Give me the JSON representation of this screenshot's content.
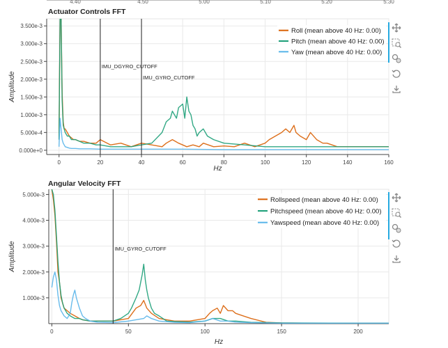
{
  "charts": [
    {
      "title": "Actuator Controls FFT",
      "xlabel": "Hz",
      "ylabel": "Amplitude",
      "top_axis_ticks": [
        "4.40",
        "4.50",
        "5.00",
        "5.10",
        "5.20",
        "5.30"
      ],
      "cutoffs": [
        {
          "label": "IMU_DGYRO_CUTOFF",
          "x": 20
        },
        {
          "label": "IMU_GYRO_CUTOFF",
          "x": 40
        }
      ],
      "legend": [
        {
          "label": "Roll (mean above 40 Hz: 0.00)",
          "color": "#d95f02"
        },
        {
          "label": "Pitch (mean above 40 Hz: 0.00)",
          "color": "#1b9e77"
        },
        {
          "label": "Yaw (mean above 40 Hz: 0.00)",
          "color": "#56b4e9"
        }
      ]
    },
    {
      "title": "Angular Velocity FFT",
      "xlabel": "Hz",
      "ylabel": "Amplitude",
      "cutoffs": [
        {
          "label": "IMU_GYRO_CUTOFF",
          "x": 40
        }
      ],
      "legend": [
        {
          "label": "Rollspeed (mean above 40 Hz: 0.00)",
          "color": "#d95f02"
        },
        {
          "label": "Pitchspeed (mean above 40 Hz: 0.00)",
          "color": "#1b9e77"
        },
        {
          "label": "Yawspeed (mean above 40 Hz: 0.00)",
          "color": "#56b4e9"
        }
      ]
    }
  ],
  "toolbar": [
    "pan-icon",
    "box-zoom-icon",
    "wheel-zoom-icon",
    "reset-icon",
    "save-icon"
  ],
  "chart_data": [
    {
      "type": "line",
      "title": "Actuator Controls FFT",
      "xlabel": "Hz",
      "ylabel": "Amplitude",
      "xlim": [
        -6,
        160
      ],
      "ylim": [
        -0.00012,
        0.0037
      ],
      "x_ticks": [
        "0",
        "20",
        "40",
        "60",
        "80",
        "100",
        "120",
        "140",
        "160"
      ],
      "y_ticks": [
        "0.000e+0",
        "5.000e-4",
        "1.000e-3",
        "1.500e-3",
        "2.000e-3",
        "2.500e-3",
        "3.000e-3",
        "3.500e-3"
      ],
      "grid": true,
      "legend_position": "top-right",
      "series": [
        {
          "name": "Roll (mean above 40 Hz: 0.00)",
          "color": "#d95f02",
          "x": [
            0,
            0.5,
            1,
            1.5,
            2,
            2.5,
            3,
            4,
            5,
            6,
            7,
            8,
            10,
            12,
            15,
            18,
            20,
            25,
            30,
            35,
            40,
            45,
            50,
            52,
            55,
            58,
            60,
            62,
            65,
            68,
            70,
            75,
            80,
            85,
            90,
            95,
            100,
            102,
            105,
            108,
            110,
            112,
            114,
            115,
            117,
            120,
            122,
            125,
            128,
            130,
            135,
            140,
            145,
            150,
            155,
            160
          ],
          "y": [
            0.0003,
            0.0037,
            0.0037,
            0.0016,
            0.0008,
            0.0006,
            0.0006,
            0.0005,
            0.0004,
            0.00035,
            0.0003,
            0.0003,
            0.00025,
            0.00025,
            0.0002,
            0.0002,
            0.0003,
            0.00015,
            0.0002,
            0.0001,
            0.0002,
            0.00015,
            0.0001,
            0.0002,
            0.0003,
            0.0002,
            0.00015,
            0.0001,
            0.00015,
            0.0001,
            0.0002,
            0.0001,
            0.00012,
            0.0001,
            0.0002,
            0.0001,
            0.0002,
            0.0003,
            0.0004,
            0.0005,
            0.0006,
            0.0005,
            0.0007,
            0.0005,
            0.0004,
            0.0003,
            0.0005,
            0.0003,
            0.0002,
            0.0002,
            0.0001,
            0.0001,
            0.0001,
            0.0001,
            0.0001,
            0.0001
          ]
        },
        {
          "name": "Pitch (mean above 40 Hz: 0.00)",
          "color": "#1b9e77",
          "x": [
            0,
            0.5,
            1,
            1.5,
            2,
            2.5,
            3,
            4,
            5,
            6,
            8,
            10,
            12,
            15,
            18,
            20,
            25,
            30,
            35,
            40,
            45,
            50,
            52,
            54,
            55,
            57,
            58,
            60,
            61,
            62,
            63,
            64,
            65,
            66,
            67,
            68,
            70,
            72,
            75,
            80,
            90,
            100,
            110,
            120,
            130,
            140,
            150,
            160
          ],
          "y": [
            0.0003,
            0.0037,
            0.0037,
            0.0014,
            0.0007,
            0.0006,
            0.0005,
            0.0004,
            0.0004,
            0.0003,
            0.0003,
            0.00025,
            0.0002,
            0.0002,
            0.00015,
            0.00015,
            0.0001,
            0.0001,
            0.0001,
            0.00015,
            0.0002,
            0.0005,
            0.0008,
            0.0009,
            0.0011,
            0.0009,
            0.0012,
            0.0013,
            0.0009,
            0.0015,
            0.0011,
            0.001,
            0.0007,
            0.0006,
            0.0004,
            0.0005,
            0.0006,
            0.0004,
            0.0003,
            0.0002,
            0.00015,
            0.0001,
            0.0001,
            0.0001,
            0.0001,
            0.0001,
            0.0001,
            0.0001
          ]
        },
        {
          "name": "Yaw (mean above 40 Hz: 0.00)",
          "color": "#56b4e9",
          "x": [
            0,
            0.5,
            1,
            1.5,
            2,
            3,
            4,
            5,
            6,
            8,
            10,
            15,
            20,
            30,
            40,
            60,
            80,
            100,
            120,
            140,
            160
          ],
          "y": [
            0.0001,
            0.0009,
            0.0006,
            0.0003,
            0.0002,
            0.0001,
            8e-05,
            6e-05,
            5e-05,
            5e-05,
            4e-05,
            4e-05,
            3e-05,
            3e-05,
            3e-05,
            3e-05,
            2e-05,
            2e-05,
            2e-05,
            2e-05,
            2e-05
          ]
        }
      ]
    },
    {
      "type": "line",
      "title": "Angular Velocity FFT",
      "xlabel": "Hz",
      "ylabel": "Amplitude",
      "xlim": [
        -2,
        220
      ],
      "ylim": [
        0,
        0.0052
      ],
      "x_ticks": [
        "0",
        "50",
        "100",
        "150",
        "200"
      ],
      "y_ticks": [
        "1.000e-3",
        "2.000e-3",
        "3.000e-3",
        "4.000e-3",
        "5.000e-3"
      ],
      "grid": true,
      "legend_position": "top-right",
      "series": [
        {
          "name": "Rollspeed (mean above 40 Hz: 0.00)",
          "color": "#d95f02",
          "x": [
            0,
            1,
            2,
            3,
            4,
            5,
            6,
            7,
            8,
            10,
            12,
            15,
            18,
            20,
            25,
            30,
            40,
            50,
            55,
            58,
            60,
            62,
            65,
            70,
            80,
            90,
            100,
            103,
            105,
            108,
            110,
            112,
            115,
            118,
            120,
            125,
            130,
            140,
            150,
            170,
            200,
            220
          ],
          "y": [
            0.0052,
            0.0048,
            0.0042,
            0.0032,
            0.002,
            0.0016,
            0.001,
            0.0008,
            0.0006,
            0.0005,
            0.0004,
            0.0003,
            0.0002,
            0.00015,
            0.0001,
            0.0001,
            0.0001,
            0.0002,
            0.0006,
            0.0007,
            0.0009,
            0.0006,
            0.0004,
            0.0002,
            0.0001,
            0.0001,
            0.0002,
            0.0004,
            0.0005,
            0.0006,
            0.0004,
            0.0007,
            0.0005,
            0.0005,
            0.0004,
            0.0003,
            0.0002,
            5e-05,
            3e-05,
            2e-05,
            2e-05,
            2e-05
          ]
        },
        {
          "name": "Pitchspeed (mean above 40 Hz: 0.00)",
          "color": "#1b9e77",
          "x": [
            0,
            1,
            2,
            3,
            4,
            5,
            6,
            7,
            8,
            10,
            12,
            15,
            18,
            20,
            25,
            30,
            40,
            45,
            50,
            52,
            55,
            57,
            58,
            59,
            60,
            61,
            62,
            63,
            64,
            65,
            67,
            70,
            75,
            80,
            90,
            100,
            105,
            110,
            115,
            120,
            130,
            150,
            200,
            220
          ],
          "y": [
            0.0052,
            0.005,
            0.0044,
            0.0034,
            0.0024,
            0.0016,
            0.0011,
            0.0008,
            0.0006,
            0.0004,
            0.0003,
            0.0002,
            0.0002,
            0.00015,
            0.0001,
            0.0001,
            0.0001,
            0.0002,
            0.0004,
            0.0006,
            0.001,
            0.0013,
            0.0016,
            0.0019,
            0.0023,
            0.0017,
            0.0013,
            0.001,
            0.0008,
            0.0006,
            0.0004,
            0.0003,
            0.0001,
            8e-05,
            6e-05,
            0.0001,
            0.0002,
            0.0002,
            0.0001,
            0.0001,
            5e-05,
            3e-05,
            2e-05,
            2e-05
          ]
        },
        {
          "name": "Yawspeed (mean above 40 Hz: 0.00)",
          "color": "#56b4e9",
          "x": [
            0,
            1,
            2,
            3,
            4,
            5,
            6,
            8,
            10,
            12,
            13,
            14,
            15,
            16,
            17,
            18,
            20,
            22,
            25,
            30,
            40,
            50,
            60,
            62,
            65,
            70,
            80,
            90,
            100,
            105,
            110,
            115,
            120,
            130,
            150,
            200,
            220
          ],
          "y": [
            0.0014,
            0.0018,
            0.002,
            0.0017,
            0.0011,
            0.0007,
            0.0005,
            0.0003,
            0.0002,
            0.0004,
            0.0008,
            0.0011,
            0.0013,
            0.001,
            0.0008,
            0.0006,
            0.0003,
            0.0002,
            0.0001,
            5e-05,
            4e-05,
            0.0001,
            0.0002,
            0.0003,
            0.0002,
            0.0001,
            5e-05,
            4e-05,
            0.0001,
            0.0002,
            0.0001,
            0.0001,
            6e-05,
            4e-05,
            2e-05,
            2e-05,
            2e-05
          ]
        }
      ]
    }
  ]
}
